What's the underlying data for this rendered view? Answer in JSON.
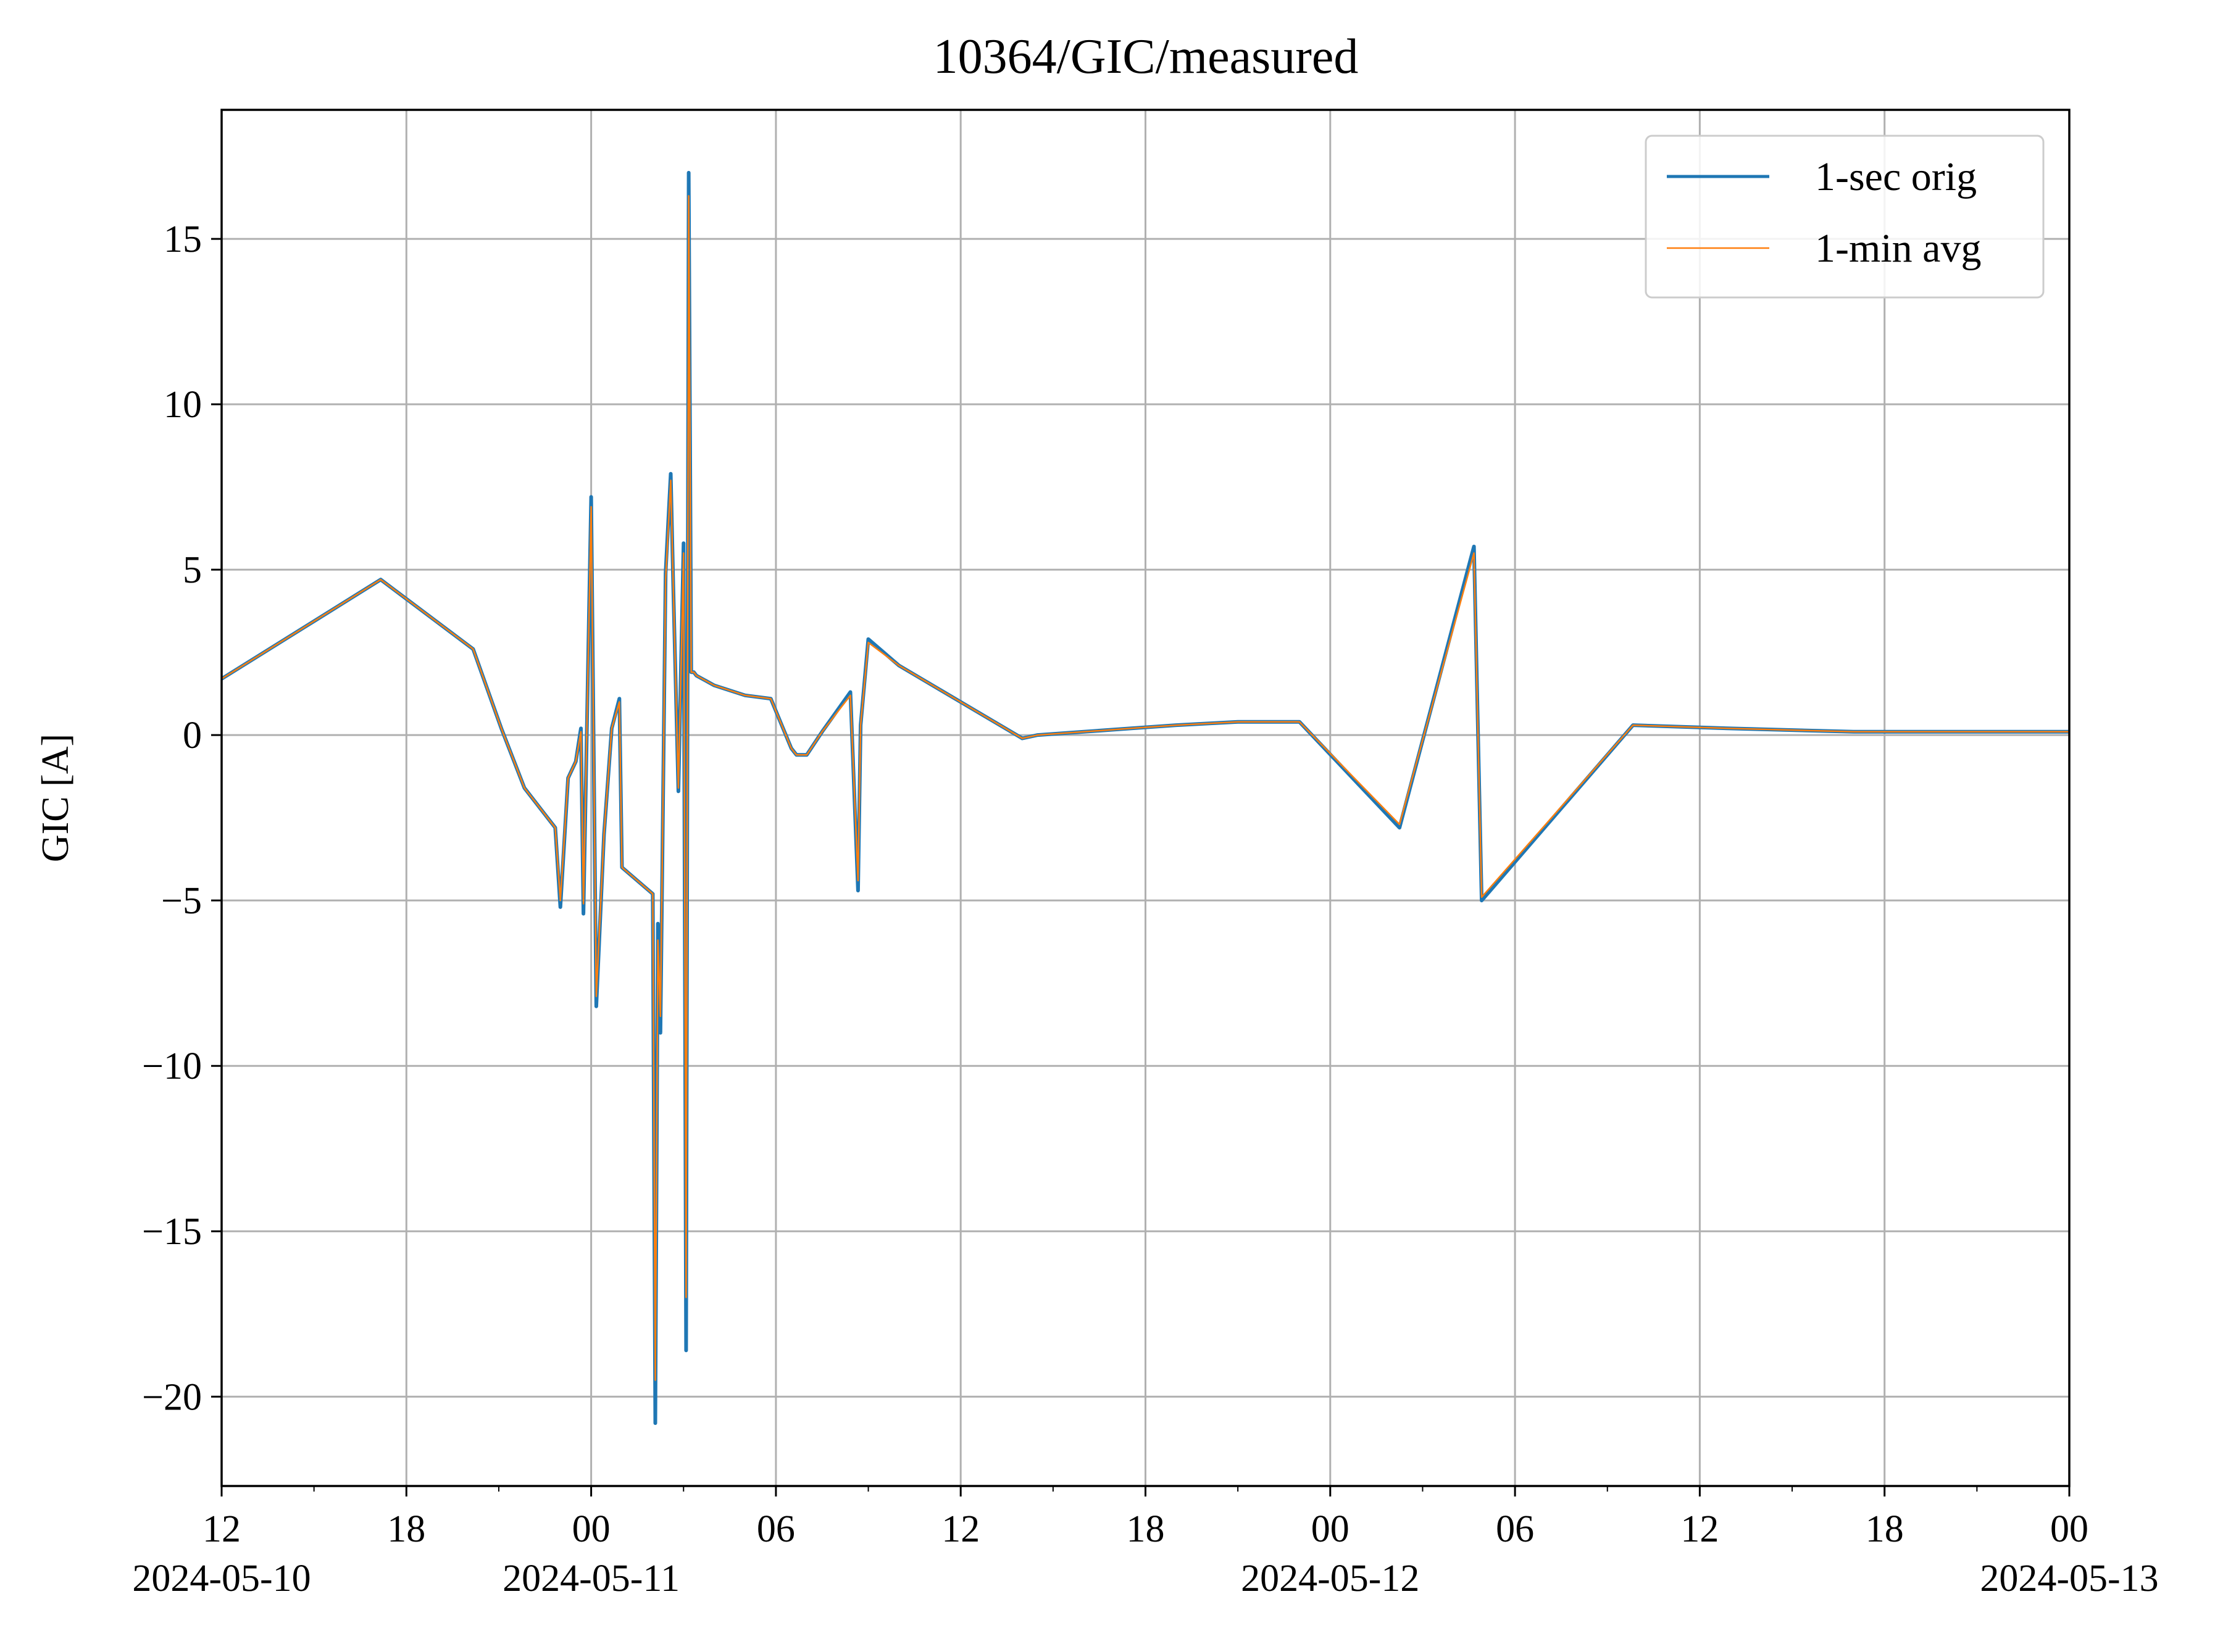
{
  "chart_data": {
    "type": "line",
    "title": "10364/GIC/measured",
    "xlabel": "",
    "ylabel": "GIC [A]",
    "xlim": [
      "2024-05-10T12:00",
      "2024-05-13T00:00"
    ],
    "ylim": [
      -22.7,
      18.9
    ],
    "grid": true,
    "legend_position": "top-right",
    "x_ticks": [
      {
        "time": "2024-05-10T12:00",
        "label": "12",
        "date_label": "2024-05-10"
      },
      {
        "time": "2024-05-10T18:00",
        "label": "18",
        "date_label": ""
      },
      {
        "time": "2024-05-11T00:00",
        "label": "00",
        "date_label": "2024-05-11"
      },
      {
        "time": "2024-05-11T06:00",
        "label": "06",
        "date_label": ""
      },
      {
        "time": "2024-05-11T12:00",
        "label": "12",
        "date_label": ""
      },
      {
        "time": "2024-05-11T18:00",
        "label": "18",
        "date_label": ""
      },
      {
        "time": "2024-05-12T00:00",
        "label": "00",
        "date_label": "2024-05-12"
      },
      {
        "time": "2024-05-12T06:00",
        "label": "06",
        "date_label": ""
      },
      {
        "time": "2024-05-12T12:00",
        "label": "12",
        "date_label": ""
      },
      {
        "time": "2024-05-12T18:00",
        "label": "18",
        "date_label": ""
      },
      {
        "time": "2024-05-13T00:00",
        "label": "00",
        "date_label": "2024-05-13"
      }
    ],
    "x_minor_ticks": [
      "2024-05-10T15:00",
      "2024-05-10T21:00",
      "2024-05-11T03:00",
      "2024-05-11T09:00",
      "2024-05-11T15:00",
      "2024-05-11T21:00",
      "2024-05-12T03:00",
      "2024-05-12T09:00",
      "2024-05-12T15:00",
      "2024-05-12T21:00"
    ],
    "y_ticks": [
      {
        "value": 15,
        "label": "15"
      },
      {
        "value": 10,
        "label": "10"
      },
      {
        "value": 5,
        "label": "5"
      },
      {
        "value": 0,
        "label": "0"
      },
      {
        "value": -5,
        "label": "−5"
      },
      {
        "value": -10,
        "label": "−10"
      },
      {
        "value": -15,
        "label": "−15"
      },
      {
        "value": -20,
        "label": "−20"
      }
    ],
    "series": [
      {
        "name": "1-sec orig",
        "color": "#1f77b4",
        "x": [
          "2024-05-10T12:00",
          "2024-05-10T17:10",
          "2024-05-10T20:10",
          "2024-05-10T21:05",
          "2024-05-10T21:50",
          "2024-05-10T22:50",
          "2024-05-10T23:00",
          "2024-05-10T23:15",
          "2024-05-10T23:30",
          "2024-05-10T23:40",
          "2024-05-10T23:45",
          "2024-05-11T00:00",
          "2024-05-11T00:10",
          "2024-05-11T00:25",
          "2024-05-11T00:40",
          "2024-05-11T00:55",
          "2024-05-11T01:00",
          "2024-05-11T02:00",
          "2024-05-11T02:05",
          "2024-05-11T02:10",
          "2024-05-11T02:15",
          "2024-05-11T02:25",
          "2024-05-11T02:35",
          "2024-05-11T02:40",
          "2024-05-11T02:50",
          "2024-05-11T03:00",
          "2024-05-11T03:05",
          "2024-05-11T03:10",
          "2024-05-11T03:15",
          "2024-05-11T03:20",
          "2024-05-11T03:25",
          "2024-05-11T04:00",
          "2024-05-11T05:00",
          "2024-05-11T05:50",
          "2024-05-11T06:30",
          "2024-05-11T06:35",
          "2024-05-11T06:40",
          "2024-05-11T07:00",
          "2024-05-11T07:30",
          "2024-05-11T08:25",
          "2024-05-11T08:40",
          "2024-05-11T08:45",
          "2024-05-11T09:00",
          "2024-05-11T10:00",
          "2024-05-11T14:00",
          "2024-05-11T14:30",
          "2024-05-11T16:00",
          "2024-05-11T17:30",
          "2024-05-11T19:00",
          "2024-05-11T21:00",
          "2024-05-11T23:00",
          "2024-05-12T02:15",
          "2024-05-12T04:40",
          "2024-05-12T04:55",
          "2024-05-12T09:50",
          "2024-05-12T13:00",
          "2024-05-12T17:00",
          "2024-05-12T21:00",
          "2024-05-13T00:00"
        ],
        "values": [
          1.7,
          4.7,
          2.6,
          0.2,
          -1.6,
          -2.8,
          -5.2,
          -1.3,
          -0.8,
          0.2,
          -5.4,
          7.2,
          -8.2,
          -3.0,
          0.2,
          1.1,
          -4.0,
          -4.8,
          -20.8,
          -5.7,
          -9.0,
          4.9,
          7.9,
          4.5,
          -1.7,
          5.8,
          -18.6,
          17.0,
          1.9,
          1.9,
          1.8,
          1.5,
          1.2,
          1.1,
          -0.4,
          -0.5,
          -0.6,
          -0.6,
          0.1,
          1.3,
          -4.7,
          0.3,
          2.9,
          2.1,
          -0.1,
          0.0,
          0.1,
          0.2,
          0.3,
          0.4,
          0.4,
          -2.8,
          5.7,
          -5.0,
          0.3,
          0.2,
          0.1,
          0.1,
          0.1
        ]
      },
      {
        "name": "1-min avg",
        "color": "#ff7f0e",
        "x": [
          "2024-05-10T12:00",
          "2024-05-10T17:10",
          "2024-05-10T20:10",
          "2024-05-10T21:05",
          "2024-05-10T21:50",
          "2024-05-10T22:50",
          "2024-05-10T23:00",
          "2024-05-10T23:15",
          "2024-05-10T23:30",
          "2024-05-10T23:40",
          "2024-05-10T23:45",
          "2024-05-11T00:00",
          "2024-05-11T00:10",
          "2024-05-11T00:25",
          "2024-05-11T00:40",
          "2024-05-11T00:55",
          "2024-05-11T01:00",
          "2024-05-11T02:00",
          "2024-05-11T02:05",
          "2024-05-11T02:10",
          "2024-05-11T02:15",
          "2024-05-11T02:25",
          "2024-05-11T02:35",
          "2024-05-11T02:40",
          "2024-05-11T02:50",
          "2024-05-11T03:00",
          "2024-05-11T03:05",
          "2024-05-11T03:10",
          "2024-05-11T03:15",
          "2024-05-11T03:20",
          "2024-05-11T03:25",
          "2024-05-11T04:00",
          "2024-05-11T05:00",
          "2024-05-11T05:50",
          "2024-05-11T06:30",
          "2024-05-11T06:35",
          "2024-05-11T06:40",
          "2024-05-11T07:00",
          "2024-05-11T07:30",
          "2024-05-11T08:25",
          "2024-05-11T08:40",
          "2024-05-11T08:45",
          "2024-05-11T09:00",
          "2024-05-11T10:00",
          "2024-05-11T14:00",
          "2024-05-11T14:30",
          "2024-05-11T16:00",
          "2024-05-11T17:30",
          "2024-05-11T19:00",
          "2024-05-11T21:00",
          "2024-05-11T23:00",
          "2024-05-12T02:15",
          "2024-05-12T04:40",
          "2024-05-12T04:55",
          "2024-05-12T09:50",
          "2024-05-12T13:00",
          "2024-05-12T17:00",
          "2024-05-12T21:00",
          "2024-05-13T00:00"
        ],
        "values": [
          1.7,
          4.7,
          2.6,
          0.2,
          -1.6,
          -2.8,
          -5.0,
          -1.3,
          -0.8,
          0.1,
          -5.1,
          6.9,
          -7.9,
          -3.0,
          0.2,
          1.0,
          -4.0,
          -4.8,
          -19.5,
          -6.2,
          -8.5,
          4.7,
          7.7,
          4.5,
          -1.6,
          5.5,
          -17.0,
          16.3,
          1.9,
          1.9,
          1.8,
          1.5,
          1.2,
          1.1,
          -0.4,
          -0.5,
          -0.6,
          -0.6,
          0.1,
          1.2,
          -4.4,
          0.3,
          2.8,
          2.1,
          -0.1,
          0.0,
          0.1,
          0.2,
          0.3,
          0.4,
          0.4,
          -2.7,
          5.5,
          -4.9,
          0.3,
          0.2,
          0.1,
          0.1,
          0.1
        ]
      }
    ]
  },
  "legend": {
    "items": [
      {
        "label": "1-sec orig",
        "color": "#1f77b4"
      },
      {
        "label": "1-min avg",
        "color": "#ff7f0e"
      }
    ]
  }
}
